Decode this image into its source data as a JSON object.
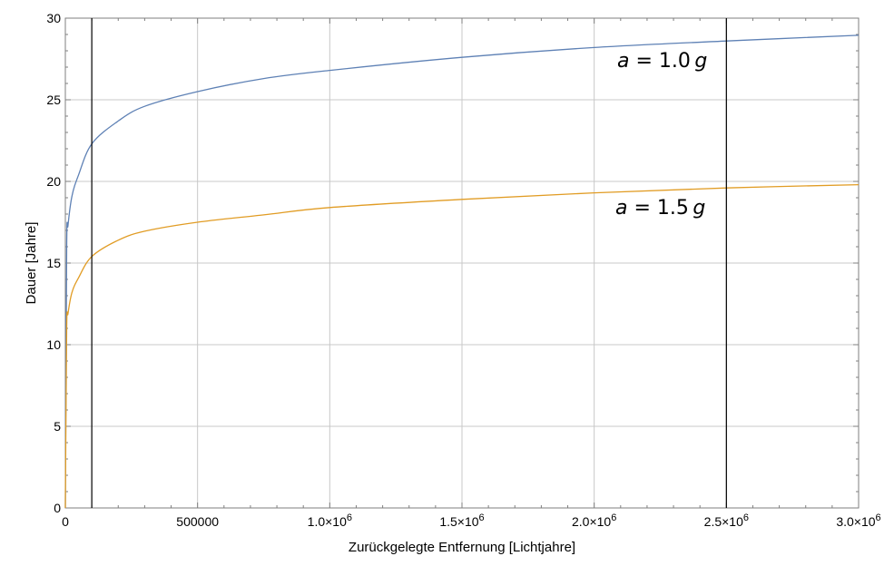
{
  "chart_data": {
    "type": "line",
    "title": "",
    "xlabel": "Zurückgelegte Entfernung [Lichtjahre]",
    "ylabel": "Dauer [Jahre]",
    "xlim": [
      0,
      3000000
    ],
    "ylim": [
      0,
      30
    ],
    "grid": true,
    "x_ticks": [
      {
        "value": 0,
        "mantissa": "0",
        "exponent": ""
      },
      {
        "value": 500000,
        "mantissa": "500000",
        "exponent": ""
      },
      {
        "value": 1000000,
        "mantissa": "1.0×10",
        "exponent": "6"
      },
      {
        "value": 1500000,
        "mantissa": "1.5×10",
        "exponent": "6"
      },
      {
        "value": 2000000,
        "mantissa": "2.0×10",
        "exponent": "6"
      },
      {
        "value": 2500000,
        "mantissa": "2.5×10",
        "exponent": "6"
      },
      {
        "value": 3000000,
        "mantissa": "3.0×10",
        "exponent": "6"
      }
    ],
    "y_ticks": [
      "0",
      "5",
      "10",
      "15",
      "20",
      "25",
      "30"
    ],
    "vertical_lines": [
      100000,
      2500000
    ],
    "series": [
      {
        "label": {
          "var": "a",
          "eq": " = ",
          "num": "1.0",
          "unit": "g"
        },
        "color": "#5e81b5",
        "points": [
          [
            0,
            0
          ],
          [
            5000,
            15.9
          ],
          [
            10000,
            17.3
          ],
          [
            25000,
            19.1
          ],
          [
            50000,
            20.4
          ],
          [
            100000,
            22.3
          ],
          [
            200000,
            23.7
          ],
          [
            300000,
            24.6
          ],
          [
            500000,
            25.5
          ],
          [
            750000,
            26.3
          ],
          [
            1000000,
            26.8
          ],
          [
            1500000,
            27.6
          ],
          [
            2000000,
            28.2
          ],
          [
            2500000,
            28.6
          ],
          [
            3000000,
            28.95
          ]
        ]
      },
      {
        "label": {
          "var": "a",
          "eq": " = ",
          "num": "1.5",
          "unit": "g"
        },
        "color": "#e19c24",
        "points": [
          [
            0,
            0
          ],
          [
            5000,
            10.9
          ],
          [
            10000,
            11.9
          ],
          [
            25000,
            13.2
          ],
          [
            50000,
            14.1
          ],
          [
            100000,
            15.4
          ],
          [
            200000,
            16.4
          ],
          [
            300000,
            16.95
          ],
          [
            500000,
            17.5
          ],
          [
            750000,
            17.95
          ],
          [
            1000000,
            18.4
          ],
          [
            1500000,
            18.9
          ],
          [
            2000000,
            19.3
          ],
          [
            2500000,
            19.6
          ],
          [
            3000000,
            19.8
          ]
        ]
      }
    ]
  }
}
